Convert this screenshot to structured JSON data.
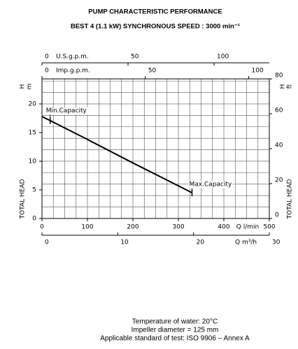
{
  "chart_data": {
    "type": "line",
    "title": "PUMP CHARACTERISTIC PERFORMANCE",
    "subtitle": "BEST 4 (1.1 kW) SYNCHRONOUS SPEED : 3000 min⁻¹",
    "x_label": "Q l/min",
    "xlim": [
      0,
      500
    ],
    "xticks": [
      0,
      100,
      200,
      300,
      400,
      500
    ],
    "x": [
      0,
      18,
      100,
      200,
      330
    ],
    "values": [
      17.8,
      17.1,
      13.8,
      9.7,
      4.5
    ],
    "color": "#000000",
    "annotations": [
      "Min.Capacity",
      "Max.Capacity"
    ],
    "y_label": "TOTAL HEAD",
    "y_symbol": "H",
    "y_unit": "m",
    "ylim": [
      0,
      24.38
    ],
    "yticks": [
      0,
      5,
      10,
      15,
      20
    ],
    "y2_unit": "ft",
    "y2lim": [
      0,
      80
    ],
    "y2ticks": [
      0,
      20,
      40,
      60,
      80
    ],
    "grid": {
      "x_step": 25,
      "y_step": 2
    },
    "x_m3h": {
      "label": "Q m³/h",
      "lim": [
        0,
        30
      ],
      "ticks": [
        0,
        10,
        20,
        30
      ]
    },
    "x_usgpm": {
      "label": "U.S.g.p.m.",
      "lim": [
        0,
        132.09
      ],
      "ticks": [
        0,
        50,
        100
      ]
    },
    "x_impgpm": {
      "label": "Imp.g.p.m.",
      "lim": [
        0,
        109.98
      ],
      "ticks": [
        0,
        50,
        100
      ]
    },
    "notes": [
      "Temperature of water: 20°C",
      "Impeller diameter = 125 mm",
      "Applicable standard of test: ISO 9906 – Annex A"
    ]
  }
}
